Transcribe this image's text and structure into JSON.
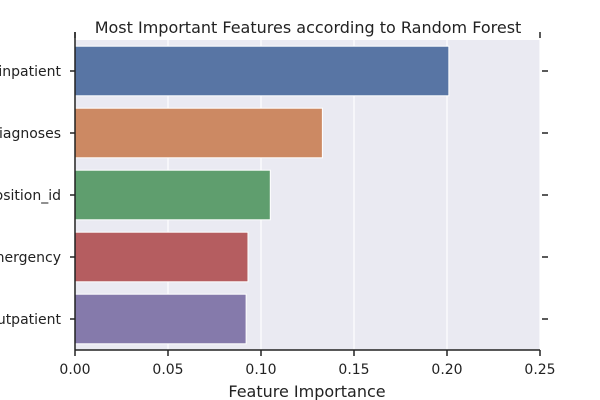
{
  "chart_data": {
    "type": "bar",
    "orientation": "horizontal",
    "title": "Most Important Features according to Random Forest",
    "xlabel": "Feature Importance",
    "ylabel": "",
    "categories": [
      "_inpatient",
      "iagnoses",
      "position_id",
      "mergency",
      "outpatient"
    ],
    "values": [
      0.201,
      0.133,
      0.105,
      0.093,
      0.092
    ],
    "colors": [
      "#5875a4",
      "#cc8963",
      "#5f9e6e",
      "#b55d60",
      "#857aab"
    ],
    "xlim": [
      0,
      0.25
    ],
    "xticks": [
      0.0,
      0.05,
      0.1,
      0.15,
      0.2,
      0.25
    ],
    "xtick_labels": [
      "0.00",
      "0.05",
      "0.10",
      "0.15",
      "0.20",
      "0.25"
    ],
    "grid": "vertical",
    "background": "#eaeaf2"
  }
}
